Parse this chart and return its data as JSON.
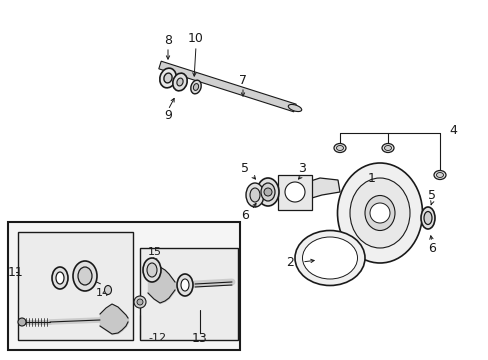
{
  "bg_color": "#ffffff",
  "line_color": "#1a1a1a",
  "box_fill": "#f5f5f5",
  "inner_box_fill": "#ebebeb",
  "figsize": [
    4.89,
    3.6
  ],
  "dpi": 100,
  "gray_fill": "#cccccc",
  "dark_gray": "#888888"
}
